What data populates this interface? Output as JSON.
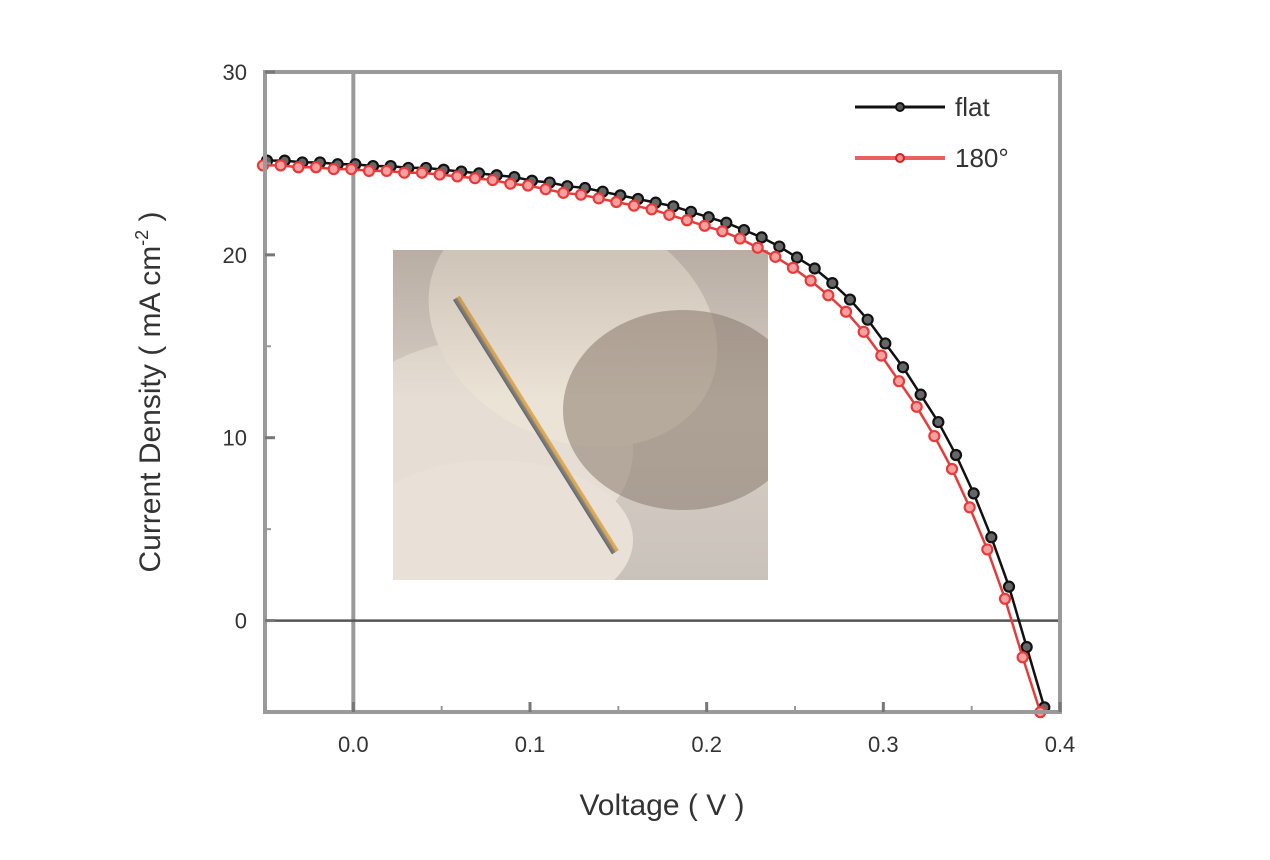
{
  "chart_data": {
    "type": "line",
    "title": "",
    "xlabel": "Voltage ( V )",
    "ylabel": "Current Density ( mA cm",
    "ylabel_sup": "-2",
    "ylabel_end": " )",
    "xlim": [
      -0.05,
      0.4
    ],
    "ylim": [
      -5,
      30
    ],
    "xticks": [
      0.0,
      0.1,
      0.2,
      0.3,
      0.4
    ],
    "xtick_labels": [
      "0.0",
      "0.1",
      "0.2",
      "0.3",
      "0.4"
    ],
    "yticks": [
      0,
      10,
      20,
      30
    ],
    "ytick_labels": [
      "0",
      "10",
      "20",
      "30"
    ],
    "grid": false,
    "legend_position": "top-right",
    "reference_lines": {
      "x": 0,
      "y": 0
    },
    "x": [
      -0.05,
      -0.04,
      -0.03,
      -0.02,
      -0.01,
      0,
      0.01,
      0.02,
      0.03,
      0.04,
      0.05,
      0.06,
      0.07,
      0.08,
      0.09,
      0.1,
      0.11,
      0.12,
      0.13,
      0.14,
      0.15,
      0.16,
      0.17,
      0.18,
      0.19,
      0.2,
      0.21,
      0.22,
      0.23,
      0.24,
      0.25,
      0.26,
      0.27,
      0.28,
      0.29,
      0.3,
      0.31,
      0.32,
      0.33,
      0.34,
      0.35,
      0.36,
      0.37,
      0.38,
      0.39
    ],
    "series": [
      {
        "name": "flat",
        "color": "#111111",
        "values": [
          25.1,
          25.1,
          25.0,
          25.0,
          24.9,
          24.9,
          24.8,
          24.8,
          24.7,
          24.7,
          24.6,
          24.5,
          24.4,
          24.3,
          24.2,
          24.0,
          23.9,
          23.7,
          23.6,
          23.4,
          23.2,
          23.0,
          22.8,
          22.6,
          22.3,
          22.0,
          21.7,
          21.3,
          20.9,
          20.4,
          19.8,
          19.2,
          18.4,
          17.5,
          16.4,
          15.1,
          13.8,
          12.3,
          10.8,
          9.0,
          6.9,
          4.5,
          1.8,
          -1.5,
          -4.8
        ]
      },
      {
        "name": "180°",
        "color": "#e83a3a",
        "values": [
          25.0,
          25.0,
          24.9,
          24.9,
          24.8,
          24.8,
          24.7,
          24.7,
          24.6,
          24.6,
          24.5,
          24.4,
          24.3,
          24.2,
          24.0,
          23.9,
          23.7,
          23.5,
          23.4,
          23.2,
          23.0,
          22.8,
          22.6,
          22.3,
          22.0,
          21.7,
          21.4,
          21.0,
          20.5,
          20.0,
          19.4,
          18.7,
          17.9,
          17.0,
          15.9,
          14.6,
          13.2,
          11.8,
          10.2,
          8.4,
          6.3,
          4.0,
          1.3,
          -1.9,
          -4.9
        ]
      }
    ],
    "inset": "photo of flexible device bent between gloved fingers"
  }
}
